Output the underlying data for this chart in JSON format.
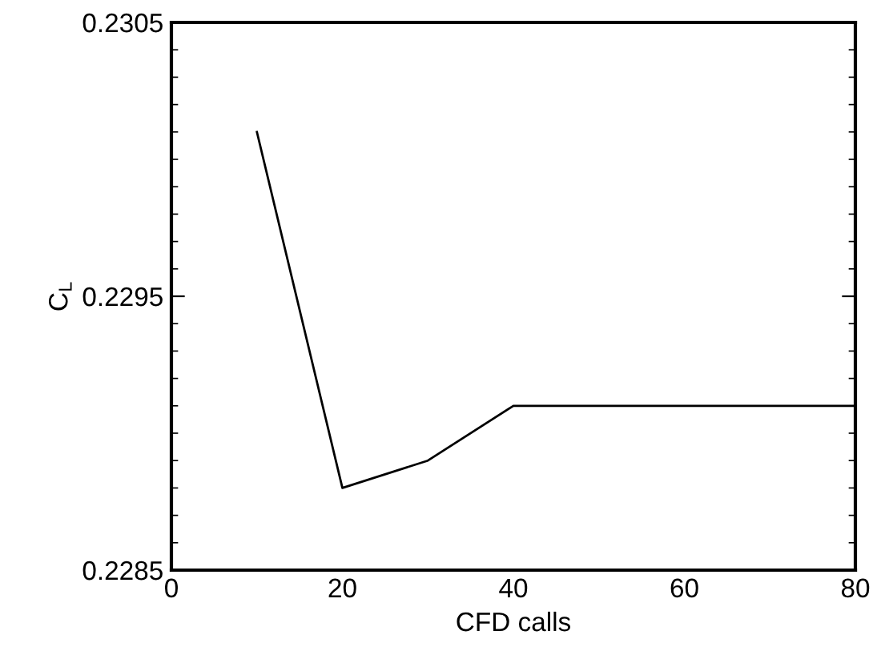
{
  "chart_data": {
    "type": "line",
    "xlabel": "CFD calls",
    "ylabel": "C$_{L}$",
    "x": [
      10,
      20,
      30,
      40,
      50,
      60,
      70,
      80
    ],
    "series": [
      {
        "color": "#000000",
        "values": [
          0.2301,
          0.2288,
          0.2289,
          0.2291,
          0.2291,
          0.2291,
          0.2291,
          0.2291
        ]
      }
    ],
    "xlim": [
      0,
      80
    ],
    "xticks": [
      0,
      20,
      40,
      60,
      80
    ],
    "ylim": [
      0.2285,
      0.2305
    ],
    "yticks": [
      0.2285,
      {
        "value": 0.2286,
        "label": null
      },
      {
        "value": 0.2287,
        "label": null
      },
      {
        "value": 0.2288,
        "label": null
      },
      {
        "value": 0.2289,
        "label": null
      },
      {
        "value": 0.229,
        "label": null
      },
      {
        "value": 0.2291,
        "label": null
      },
      {
        "value": 0.2292,
        "label": null
      },
      {
        "value": 0.2293,
        "label": null
      },
      {
        "value": 0.2294,
        "label": null
      },
      0.2295,
      {
        "value": 0.2296,
        "label": null
      },
      {
        "value": 0.2297,
        "label": null
      },
      {
        "value": 0.2298,
        "label": null
      },
      {
        "value": 0.2299,
        "label": null
      },
      {
        "value": 0.23,
        "label": null
      },
      {
        "value": 0.2301,
        "label": null
      },
      {
        "value": 0.2302,
        "label": null
      },
      {
        "value": 0.2303,
        "label": null
      },
      {
        "value": 0.2304,
        "label": null
      },
      0.2305
    ],
    "grid": false,
    "legend": false,
    "marker": "none",
    "line_style": "solid"
  }
}
